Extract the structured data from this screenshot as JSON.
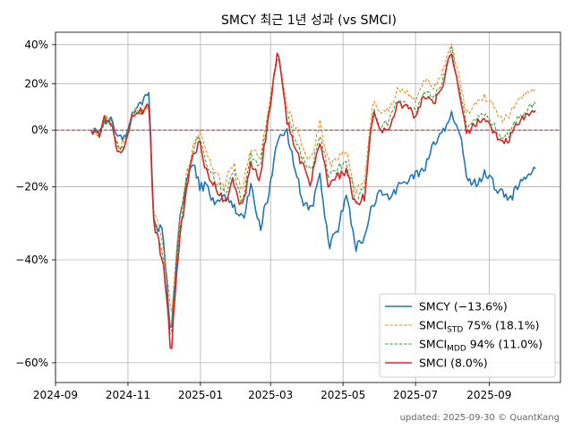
{
  "chart_data": {
    "type": "line",
    "title": "SMCY 최근 1년 성과 (vs SMCI)",
    "xlabel": "",
    "ylabel": "",
    "footer": "updated: 2025-09-30 © QuantKang",
    "x_start": "2024-09-20",
    "x_end": "2025-10-31",
    "x_data_start": "2024-10-01",
    "x_data_end": "2025-10-10",
    "xlim": [
      "2024-09-01",
      "2025-10-31"
    ],
    "ylim": [
      -63,
      47
    ],
    "y_scale": "log1p",
    "x_ticks": [
      "2024-09-01",
      "2024-11-01",
      "2025-01-01",
      "2025-03-01",
      "2025-05-01",
      "2025-07-01",
      "2025-09-01"
    ],
    "x_tick_labels": [
      "2024-09",
      "2024-11",
      "2025-01",
      "2025-03",
      "2025-05",
      "2025-07",
      "2025-09"
    ],
    "y_ticks": [
      -60,
      -40,
      -20,
      0,
      20,
      40
    ],
    "y_tick_labels": [
      "−60%",
      "−40%",
      "−20%",
      "0%",
      "20%",
      "40%"
    ],
    "zero_line": {
      "value": 0,
      "color": "#d62728",
      "style": "dashed"
    },
    "grid": true,
    "legend_position": "lower-right",
    "series": [
      {
        "name": "SMCY (−13.6%)",
        "color": "#1f77b4",
        "style": "solid",
        "anchors": [
          [
            0,
            0
          ],
          [
            4,
            -1
          ],
          [
            6,
            3
          ],
          [
            9,
            5
          ],
          [
            12,
            -3
          ],
          [
            15,
            -3
          ],
          [
            19,
            8
          ],
          [
            23,
            12
          ],
          [
            26,
            15
          ],
          [
            28,
            -30
          ],
          [
            32,
            -33
          ],
          [
            36,
            -56
          ],
          [
            40,
            -30
          ],
          [
            43,
            -17
          ],
          [
            46,
            -12
          ],
          [
            49,
            -20
          ],
          [
            52,
            -20
          ],
          [
            56,
            -25
          ],
          [
            60,
            -22
          ],
          [
            64,
            -25
          ],
          [
            68,
            -30
          ],
          [
            72,
            -20
          ],
          [
            76,
            -32
          ],
          [
            80,
            -22
          ],
          [
            84,
            -3
          ],
          [
            88,
            0
          ],
          [
            91,
            -12
          ],
          [
            95,
            -24
          ],
          [
            99,
            -27
          ],
          [
            103,
            -17
          ],
          [
            107,
            -37
          ],
          [
            111,
            -32
          ],
          [
            115,
            -23
          ],
          [
            119,
            -37
          ],
          [
            123,
            -34
          ],
          [
            127,
            -25
          ],
          [
            130,
            -20
          ],
          [
            134,
            -24
          ],
          [
            138,
            -20
          ],
          [
            142,
            -18
          ],
          [
            146,
            -16
          ],
          [
            150,
            -14
          ],
          [
            154,
            -5
          ],
          [
            158,
            -2
          ],
          [
            162,
            7
          ],
          [
            164,
            1
          ],
          [
            166,
            -1
          ],
          [
            169,
            -17
          ],
          [
            173,
            -19
          ],
          [
            177,
            -16
          ],
          [
            181,
            -19
          ],
          [
            185,
            -22
          ],
          [
            188,
            -25
          ],
          [
            192,
            -20
          ],
          [
            196,
            -16
          ],
          [
            200,
            -14
          ]
        ]
      },
      {
        "name": "SMCI<sub>STD</sub> 75% (18.1%)",
        "color": "#ff7f0e",
        "style": "dashed",
        "anchors": [
          [
            0,
            0
          ],
          [
            4,
            -2
          ],
          [
            6,
            6
          ],
          [
            9,
            3
          ],
          [
            12,
            -6
          ],
          [
            15,
            -5
          ],
          [
            19,
            7
          ],
          [
            23,
            8
          ],
          [
            26,
            10
          ],
          [
            28,
            -26
          ],
          [
            32,
            -35
          ],
          [
            36,
            -53
          ],
          [
            40,
            -30
          ],
          [
            43,
            -16
          ],
          [
            46,
            -6
          ],
          [
            49,
            0
          ],
          [
            52,
            -10
          ],
          [
            56,
            -16
          ],
          [
            60,
            -20
          ],
          [
            64,
            -12
          ],
          [
            68,
            -22
          ],
          [
            72,
            -6
          ],
          [
            76,
            -12
          ],
          [
            80,
            10
          ],
          [
            84,
            35
          ],
          [
            88,
            10
          ],
          [
            91,
            3
          ],
          [
            95,
            -6
          ],
          [
            99,
            -12
          ],
          [
            103,
            3
          ],
          [
            107,
            -13
          ],
          [
            111,
            -10
          ],
          [
            115,
            -8
          ],
          [
            119,
            -22
          ],
          [
            123,
            -18
          ],
          [
            127,
            13
          ],
          [
            130,
            6
          ],
          [
            134,
            8
          ],
          [
            138,
            18
          ],
          [
            142,
            17
          ],
          [
            146,
            12
          ],
          [
            150,
            22
          ],
          [
            154,
            18
          ],
          [
            158,
            25
          ],
          [
            162,
            41
          ],
          [
            164,
            30
          ],
          [
            166,
            22
          ],
          [
            169,
            6
          ],
          [
            173,
            11
          ],
          [
            177,
            14
          ],
          [
            181,
            10
          ],
          [
            185,
            4
          ],
          [
            188,
            6
          ],
          [
            192,
            13
          ],
          [
            196,
            15
          ],
          [
            200,
            18
          ]
        ]
      },
      {
        "name": "SMCI<sub>MDD</sub> 94% (11.0%)",
        "color": "#2ca02c",
        "style": "dashed",
        "anchors": [
          [
            0,
            0
          ],
          [
            4,
            -2
          ],
          [
            6,
            5
          ],
          [
            9,
            3
          ],
          [
            12,
            -7
          ],
          [
            15,
            -6
          ],
          [
            19,
            7
          ],
          [
            23,
            8
          ],
          [
            26,
            10
          ],
          [
            28,
            -28
          ],
          [
            32,
            -38
          ],
          [
            36,
            -56
          ],
          [
            40,
            -32
          ],
          [
            43,
            -18
          ],
          [
            46,
            -8
          ],
          [
            49,
            -2
          ],
          [
            52,
            -13
          ],
          [
            56,
            -18
          ],
          [
            60,
            -23
          ],
          [
            64,
            -15
          ],
          [
            68,
            -25
          ],
          [
            72,
            -9
          ],
          [
            76,
            -15
          ],
          [
            80,
            8
          ],
          [
            84,
            35
          ],
          [
            88,
            6
          ],
          [
            91,
            -1
          ],
          [
            95,
            -10
          ],
          [
            99,
            -16
          ],
          [
            103,
            -1
          ],
          [
            107,
            -17
          ],
          [
            111,
            -14
          ],
          [
            115,
            -12
          ],
          [
            119,
            -24
          ],
          [
            123,
            -21
          ],
          [
            127,
            9
          ],
          [
            130,
            1
          ],
          [
            134,
            3
          ],
          [
            138,
            13
          ],
          [
            142,
            12
          ],
          [
            146,
            7
          ],
          [
            150,
            17
          ],
          [
            154,
            13
          ],
          [
            158,
            20
          ],
          [
            162,
            39
          ],
          [
            164,
            26
          ],
          [
            166,
            17
          ],
          [
            169,
            1
          ],
          [
            173,
            4
          ],
          [
            177,
            7
          ],
          [
            181,
            2
          ],
          [
            185,
            -3
          ],
          [
            188,
            -2
          ],
          [
            192,
            5
          ],
          [
            196,
            8
          ],
          [
            200,
            11
          ]
        ]
      },
      {
        "name": "SMCI (8.0%)",
        "color": "#d62728",
        "style": "solid",
        "anchors": [
          [
            0,
            0
          ],
          [
            4,
            -2
          ],
          [
            6,
            5
          ],
          [
            9,
            3
          ],
          [
            12,
            -8
          ],
          [
            15,
            -7
          ],
          [
            19,
            7
          ],
          [
            23,
            8
          ],
          [
            26,
            10
          ],
          [
            28,
            -30
          ],
          [
            32,
            -40
          ],
          [
            36,
            -59
          ],
          [
            40,
            -34
          ],
          [
            43,
            -20
          ],
          [
            46,
            -10
          ],
          [
            49,
            -4
          ],
          [
            52,
            -16
          ],
          [
            56,
            -20
          ],
          [
            60,
            -25
          ],
          [
            64,
            -18
          ],
          [
            68,
            -27
          ],
          [
            72,
            -12
          ],
          [
            76,
            -18
          ],
          [
            80,
            6
          ],
          [
            84,
            36
          ],
          [
            88,
            4
          ],
          [
            91,
            -4
          ],
          [
            95,
            -13
          ],
          [
            99,
            -19
          ],
          [
            103,
            -4
          ],
          [
            107,
            -20
          ],
          [
            111,
            -17
          ],
          [
            115,
            -15
          ],
          [
            119,
            -26
          ],
          [
            123,
            -23
          ],
          [
            127,
            7
          ],
          [
            130,
            -1
          ],
          [
            134,
            1
          ],
          [
            138,
            11
          ],
          [
            142,
            10
          ],
          [
            146,
            5
          ],
          [
            150,
            15
          ],
          [
            154,
            11
          ],
          [
            158,
            18
          ],
          [
            162,
            38
          ],
          [
            164,
            24
          ],
          [
            166,
            15
          ],
          [
            169,
            -1
          ],
          [
            173,
            2
          ],
          [
            177,
            5
          ],
          [
            181,
            0
          ],
          [
            185,
            -5
          ],
          [
            188,
            -4
          ],
          [
            192,
            3
          ],
          [
            196,
            6
          ],
          [
            200,
            8
          ]
        ]
      }
    ]
  }
}
